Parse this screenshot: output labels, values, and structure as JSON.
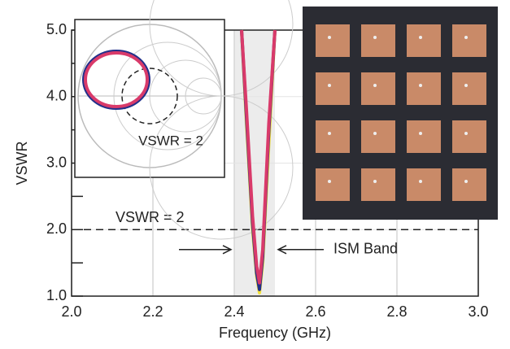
{
  "chart_data": {
    "type": "line",
    "x_label": "Frequency (GHz)",
    "y_label": "VSWR",
    "xlim": [
      2.0,
      3.0
    ],
    "ylim": [
      1.0,
      5.0
    ],
    "xticks": [
      {
        "value": 2.0,
        "label": "2.0"
      },
      {
        "value": 2.2,
        "label": "2.2"
      },
      {
        "value": 2.4,
        "label": "2.4"
      },
      {
        "value": 2.6,
        "label": "2.6"
      },
      {
        "value": 2.8,
        "label": "2.8"
      },
      {
        "value": 3.0,
        "label": "3.0"
      }
    ],
    "yticks": [
      {
        "value": 1.0,
        "label": "1.0"
      },
      {
        "value": 2.0,
        "label": "2.0"
      },
      {
        "value": 3.0,
        "label": "3.0"
      },
      {
        "value": 4.0,
        "label": "4.0"
      },
      {
        "value": 5.0,
        "label": "5.0"
      }
    ],
    "minor_yticks": [
      1.5,
      2.5,
      3.5,
      4.5
    ],
    "grid": true,
    "reference_line": {
      "value": 2,
      "label": "VSWR = 2"
    },
    "band": {
      "range": [
        2.4,
        2.5
      ],
      "label": "ISM Band"
    },
    "inset_label": "VSWR = 2",
    "x": [
      2.418,
      2.43,
      2.445,
      2.455,
      2.462,
      2.47,
      2.485,
      2.5
    ],
    "series": [
      {
        "color": "#f2e03a",
        "values": [
          5.0,
          3.6,
          2.0,
          1.3,
          1.05,
          1.5,
          3.3,
          5.0
        ]
      },
      {
        "color": "#22308a",
        "values": [
          5.0,
          3.7,
          2.1,
          1.35,
          1.1,
          1.6,
          3.5,
          5.0
        ]
      },
      {
        "color": "#d93a6a",
        "values": [
          5.0,
          3.8,
          2.2,
          1.45,
          1.2,
          1.7,
          3.6,
          5.0
        ]
      }
    ]
  }
}
